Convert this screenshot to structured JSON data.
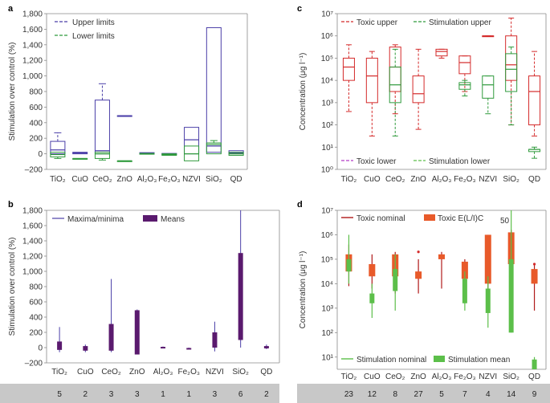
{
  "panels": {
    "a": "a",
    "b": "b",
    "c": "c",
    "d": "d"
  },
  "colors": {
    "purple": "#4b3fa8",
    "green": "#2f9a3c",
    "red": "#d42a2a",
    "magenta": "#b43cc8",
    "lightgreen": "#5cbf4a",
    "dark": "#5a1a6e",
    "darkred": "#b01a1a",
    "orange": "#e85a2a"
  },
  "chart_data": [
    {
      "id": "a",
      "type": "box",
      "title": "",
      "ylabel": "Stimulation over control (%)",
      "ylim": [
        -200,
        1800
      ],
      "yticks": [
        -200,
        0,
        200,
        400,
        600,
        800,
        1000,
        1200,
        1400,
        1600,
        1800
      ],
      "ytick_labels": [
        "–200",
        "0",
        "200",
        "400",
        "600",
        "800",
        "1,000",
        "1,200",
        "1,400",
        "1,600",
        "1,800"
      ],
      "categories": [
        "TiO2",
        "CuO",
        "CeO2",
        "ZnO",
        "Al2O3",
        "Fe2O3",
        "NZVI",
        "SiO2",
        "QD"
      ],
      "category_labels": [
        "TiO₂",
        "CuO",
        "CeO₂",
        "ZnO",
        "Al₂O₃",
        "Fe₂O₃",
        "NZVI",
        "SiO₂",
        "QD"
      ],
      "legend": [
        "Upper limits",
        "Lower limits"
      ],
      "series": [
        {
          "name": "Upper limits",
          "boxes": [
            [
              null,
              0,
              50,
              160,
              270
            ],
            [
              null,
              0,
              10,
              20,
              null
            ],
            [
              null,
              0,
              40,
              690,
              900
            ],
            [
              null,
              490,
              490,
              490,
              null
            ],
            [
              null,
              5,
              10,
              15,
              null
            ],
            [
              null,
              -10,
              0,
              5,
              null
            ],
            [
              null,
              0,
              180,
              340,
              null
            ],
            [
              null,
              20,
              100,
              1620,
              null
            ],
            [
              null,
              0,
              10,
              40,
              null
            ]
          ]
        },
        {
          "name": "Lower limits",
          "boxes": [
            [
              -60,
              -40,
              -10,
              20,
              null
            ],
            [
              null,
              -60,
              -60,
              -60,
              null
            ],
            [
              -80,
              -60,
              0,
              20,
              null
            ],
            [
              null,
              -90,
              -90,
              -90,
              null
            ],
            [
              null,
              -5,
              0,
              5,
              null
            ],
            [
              null,
              -20,
              -10,
              0,
              null
            ],
            [
              null,
              -90,
              0,
              100,
              null
            ],
            [
              null,
              0,
              120,
              140,
              170
            ],
            [
              null,
              -20,
              0,
              20,
              null
            ]
          ]
        }
      ]
    },
    {
      "id": "b",
      "type": "range-bar",
      "ylabel": "Stimulation over control (%)",
      "ylim": [
        -200,
        1800
      ],
      "yticks": [
        -200,
        0,
        200,
        400,
        600,
        800,
        1000,
        1200,
        1400,
        1600,
        1800
      ],
      "ytick_labels": [
        "–200",
        "0",
        "200",
        "400",
        "600",
        "800",
        "1,000",
        "1,200",
        "1,400",
        "1,600",
        "1,800"
      ],
      "categories": [
        "TiO2",
        "CuO",
        "CeO2",
        "ZnO",
        "Al2O3",
        "Fe2O3",
        "NZVI",
        "SiO2",
        "QD"
      ],
      "category_labels": [
        "TiO₂",
        "CuO",
        "CeO₂",
        "ZnO",
        "Al₂O₃",
        "Fe₂O₃",
        "NZVI",
        "SiO₂",
        "QD"
      ],
      "legend": [
        "Maxima/minima",
        "Means"
      ],
      "minmax": [
        [
          -60,
          270
        ],
        [
          -60,
          40
        ],
        [
          -60,
          900
        ],
        [
          -80,
          500
        ],
        [
          5,
          15
        ],
        [
          -20,
          0
        ],
        [
          -50,
          340
        ],
        [
          0,
          1800
        ],
        [
          -20,
          40
        ]
      ],
      "means": [
        [
          -30,
          80
        ],
        [
          -40,
          20
        ],
        [
          -40,
          310
        ],
        [
          -90,
          490
        ],
        [
          0,
          10
        ],
        [
          -15,
          -5
        ],
        [
          0,
          200
        ],
        [
          100,
          1240
        ],
        [
          -10,
          20
        ]
      ],
      "counts": [
        "5",
        "2",
        "3",
        "3",
        "1",
        "1",
        "3",
        "6",
        "2"
      ]
    },
    {
      "id": "c",
      "type": "box-log",
      "ylabel": "Concentration (μg l⁻¹)",
      "ylim_log10": [
        0,
        7
      ],
      "ytick_labels": [
        "10⁰",
        "10¹",
        "10²",
        "10³",
        "10⁴",
        "10⁵",
        "10⁶",
        "10⁷"
      ],
      "categories": [
        "TiO2",
        "CuO",
        "CeO2",
        "ZnO",
        "Al2O3",
        "Fe2O3",
        "NZVI",
        "SiO2",
        "QD"
      ],
      "category_labels": [
        "TiO₂",
        "CuO",
        "CeO₂",
        "ZnO",
        "Al₂O₃",
        "Fe₂O₃",
        "NZVI",
        "SiO₂",
        "QD"
      ],
      "legend": [
        "Toxic upper",
        "Stimulation upper",
        "Toxic lower",
        "Stimulation lower"
      ],
      "series": [
        {
          "name": "Toxic upper",
          "boxes_log": [
            [
              2.6,
              4.0,
              4.6,
              5.0,
              5.6
            ],
            [
              1.5,
              3.0,
              4.2,
              5.0,
              5.3
            ],
            [
              2.5,
              3.5,
              4.6,
              5.5,
              5.6
            ],
            [
              1.8,
              3.0,
              3.4,
              4.2,
              5.4
            ],
            [
              5.0,
              5.1,
              5.3,
              5.4,
              5.4
            ],
            [
              3.5,
              4.3,
              4.8,
              5.1,
              5.1
            ],
            [
              6.0,
              6.0,
              6.0,
              6.0,
              6.0
            ],
            [
              2.0,
              4.0,
              4.7,
              6.0,
              6.8
            ],
            [
              1.5,
              2.0,
              3.5,
              4.2,
              5.3
            ]
          ]
        },
        {
          "name": "Stimulation upper",
          "boxes_log": [
            [
              null,
              null,
              null,
              null,
              null
            ],
            [
              null,
              null,
              null,
              null,
              null
            ],
            [
              1.5,
              3.0,
              3.8,
              4.6,
              5.4
            ],
            [
              null,
              null,
              null,
              null,
              null
            ],
            [
              null,
              null,
              null,
              null,
              null
            ],
            [
              3.3,
              3.6,
              3.8,
              3.9,
              4.0
            ],
            [
              2.5,
              3.2,
              3.8,
              4.2,
              4.2
            ],
            [
              2.0,
              3.5,
              4.5,
              5.2,
              5.5
            ],
            [
              0.5,
              0.8,
              0.9,
              0.9,
              1.0
            ]
          ]
        },
        {
          "name": "Toxic lower",
          "boxes_log": [
            [
              null,
              null,
              null,
              null,
              null
            ],
            [
              null,
              null,
              null,
              null,
              null
            ],
            [
              null,
              null,
              null,
              null,
              null
            ],
            [
              null,
              null,
              null,
              null,
              null
            ],
            [
              null,
              null,
              null,
              null,
              null
            ],
            [
              null,
              null,
              null,
              null,
              null
            ],
            [
              null,
              null,
              null,
              null,
              null
            ],
            [
              null,
              null,
              null,
              null,
              null
            ],
            [
              null,
              null,
              null,
              null,
              null
            ]
          ]
        },
        {
          "name": "Stimulation lower",
          "boxes_log": [
            [
              null,
              null,
              null,
              null,
              null
            ],
            [
              null,
              null,
              null,
              null,
              null
            ],
            [
              null,
              null,
              null,
              null,
              null
            ],
            [
              null,
              null,
              null,
              null,
              null
            ],
            [
              null,
              null,
              null,
              null,
              null
            ],
            [
              null,
              null,
              null,
              null,
              null
            ],
            [
              null,
              null,
              null,
              null,
              null
            ],
            [
              null,
              null,
              null,
              null,
              null
            ],
            [
              null,
              null,
              null,
              null,
              null
            ]
          ]
        }
      ]
    },
    {
      "id": "d",
      "type": "range-log",
      "ylabel": "Concentration (μg l⁻¹)",
      "ylim_log10": [
        0.5,
        7
      ],
      "ytick_labels": [
        "10¹",
        "10²",
        "10³",
        "10⁴",
        "10⁵",
        "10⁶",
        "10⁷"
      ],
      "categories": [
        "TiO2",
        "CuO",
        "CeO2",
        "ZnO",
        "Al2O3",
        "Fe2O3",
        "NZVI",
        "SiO2",
        "QD"
      ],
      "category_labels": [
        "TiO₂",
        "CuO",
        "CeO₂",
        "ZnO",
        "Al₂O₃",
        "Fe₂O₃",
        "NZVI",
        "SiO₂",
        "QD"
      ],
      "legend": [
        "Toxic nominal",
        "Toxic E(L/I)C50",
        "Stimulation nominal",
        "Stimulation mean"
      ],
      "legend_display": [
        "Toxic nominal",
        "Toxic E(L/I)C",
        "50",
        "Stimulation nominal",
        "Stimulation mean"
      ],
      "toxic_nominal": [
        [
          3.9,
          5.6
        ],
        [
          3.8,
          5.2
        ],
        [
          3.6,
          5.3
        ],
        [
          3.6,
          5.0
        ],
        [
          3.8,
          5.3
        ],
        [
          3.5,
          5.0
        ],
        [
          3.8,
          6.0
        ],
        [
          4.0,
          6.2
        ],
        [
          2.9,
          4.8
        ]
      ],
      "toxic_ec50": [
        [
          4.5,
          5.2
        ],
        [
          4.3,
          4.8
        ],
        [
          4.3,
          5.2
        ],
        [
          4.2,
          4.5
        ],
        [
          5.0,
          5.2
        ],
        [
          4.2,
          4.9
        ],
        [
          4.0,
          6.0
        ],
        [
          4.8,
          6.1
        ],
        [
          4.0,
          4.6
        ]
      ],
      "stim_nominal": [
        [
          4.0,
          6.0
        ],
        [
          2.6,
          4.0
        ],
        [
          2.9,
          5.2
        ],
        [
          null,
          null
        ],
        [
          null,
          null
        ],
        [
          2.9,
          4.5
        ],
        [
          2.2,
          4.3
        ],
        [
          2.0,
          7.0
        ],
        [
          0.5,
          1.0
        ]
      ],
      "stim_mean": [
        [
          4.5,
          5.0
        ],
        [
          3.2,
          3.6
        ],
        [
          3.7,
          4.6
        ],
        [
          null,
          null
        ],
        [
          null,
          null
        ],
        [
          3.2,
          4.2
        ],
        [
          2.8,
          3.8
        ],
        [
          2.0,
          5.0
        ],
        [
          0.5,
          0.9
        ]
      ],
      "outliers": [
        [
          null
        ],
        [
          null
        ],
        [
          null
        ],
        [
          5.3
        ],
        [
          null
        ],
        [
          null
        ],
        [
          null
        ],
        [
          null
        ],
        [
          4.8
        ]
      ],
      "counts": [
        "23",
        "12",
        "8",
        "27",
        "5",
        "7",
        "4",
        "14",
        "9"
      ]
    }
  ]
}
